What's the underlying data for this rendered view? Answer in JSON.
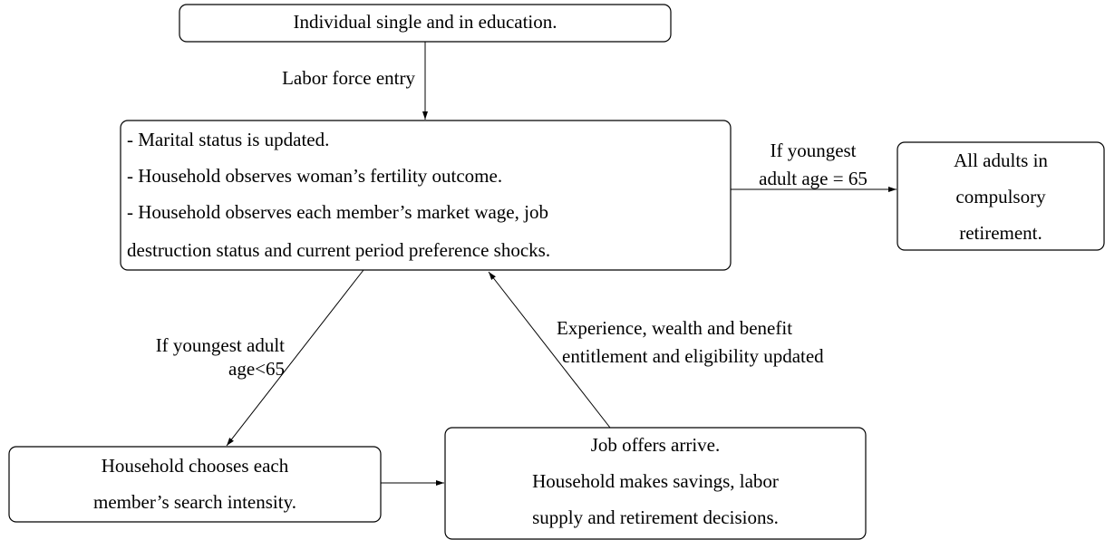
{
  "nodes": [
    {
      "lines": [
        "Individual single and in education."
      ]
    },
    {
      "lines": [
        "- Marital status is updated.",
        "- Household observes woman’s fertility outcome.",
        "- Household observes each member’s market wage, job",
        "destruction status and current period preference shocks."
      ]
    },
    {
      "lines": [
        "All adults in",
        "compulsory",
        "retirement."
      ]
    },
    {
      "lines": [
        "Household chooses each",
        "member’s search intensity."
      ]
    },
    {
      "lines": [
        "Job offers arrive.",
        "Household makes savings, labor",
        "supply and retirement decisions."
      ]
    }
  ],
  "edges": [
    {
      "label": [
        "Labor force entry"
      ]
    },
    {
      "label": [
        "If youngest",
        "adult age = 65"
      ]
    },
    {
      "label": [
        "If youngest adult",
        "age<65"
      ]
    },
    {
      "label": []
    },
    {
      "label": [
        "Experience, wealth and benefit",
        "entitlement and eligibility updated"
      ]
    }
  ]
}
